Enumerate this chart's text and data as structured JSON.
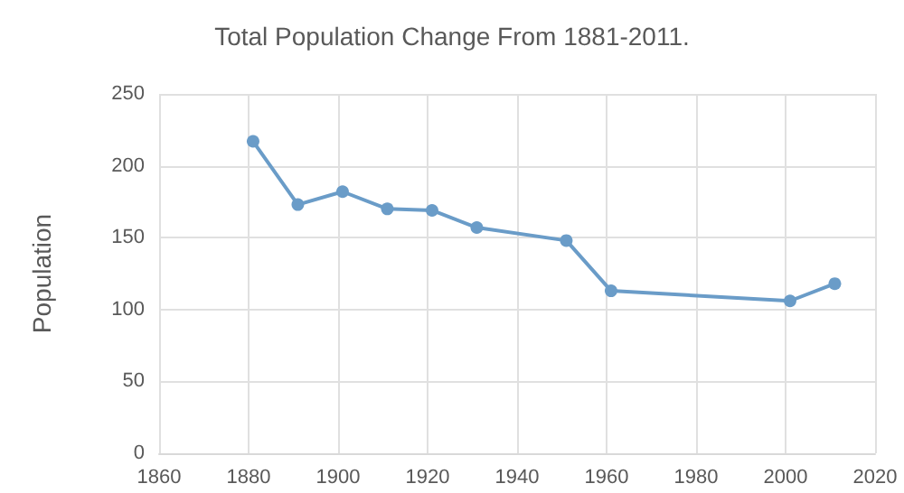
{
  "chart_data": {
    "type": "line",
    "title": "Total Population Change From 1881-2011.",
    "ylabel": "Population",
    "x": [
      1881,
      1891,
      1901,
      1911,
      1921,
      1931,
      1951,
      1961,
      2001,
      2011
    ],
    "series": [
      {
        "color": "#6a9cc8",
        "values": [
          217,
          173,
          182,
          170,
          169,
          157,
          148,
          113,
          106,
          118
        ]
      }
    ],
    "xlim": [
      1860,
      2020
    ],
    "xticks": [
      1860,
      1880,
      1900,
      1920,
      1940,
      1960,
      1980,
      2000,
      2020
    ],
    "ylim": [
      0,
      250
    ],
    "yticks": [
      0,
      50,
      100,
      150,
      200,
      250
    ],
    "grid": true,
    "marker": "circle",
    "line_style": "solid"
  }
}
